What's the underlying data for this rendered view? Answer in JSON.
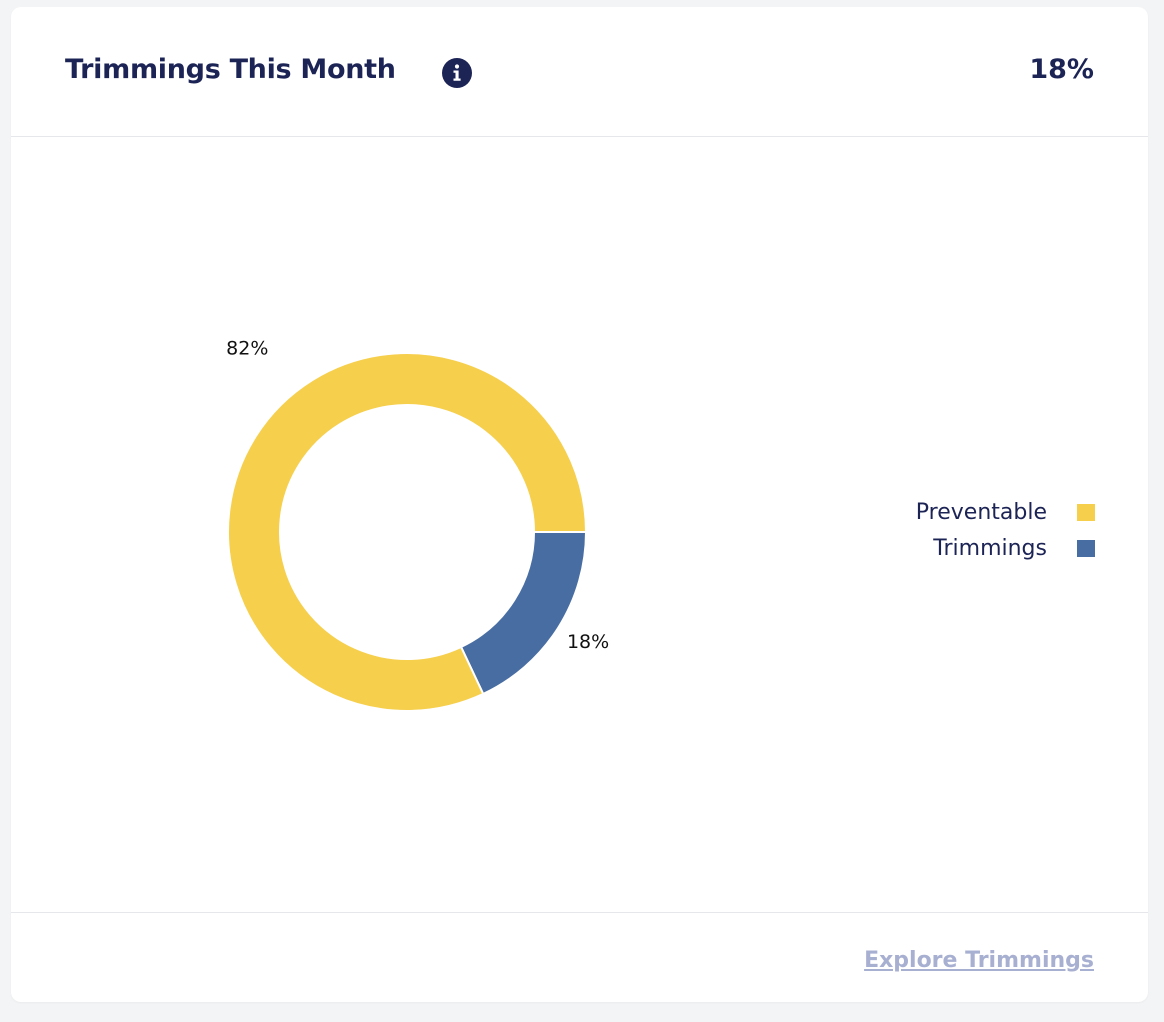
{
  "header": {
    "title": "Trimmings This Month",
    "value": "18%",
    "info_icon": "info-icon"
  },
  "footer": {
    "link_label": "Explore Trimmings"
  },
  "colors": {
    "preventable": "#f6cf4d",
    "trimmings": "#476da2",
    "title": "#1c2456",
    "link": "#a8b0d1"
  },
  "chart_data": {
    "type": "pie",
    "donut": true,
    "title": "",
    "categories": [
      "Preventable",
      "Trimmings"
    ],
    "values": [
      82,
      18
    ],
    "labels": [
      "82%",
      "18%"
    ],
    "legend_position": "right"
  }
}
